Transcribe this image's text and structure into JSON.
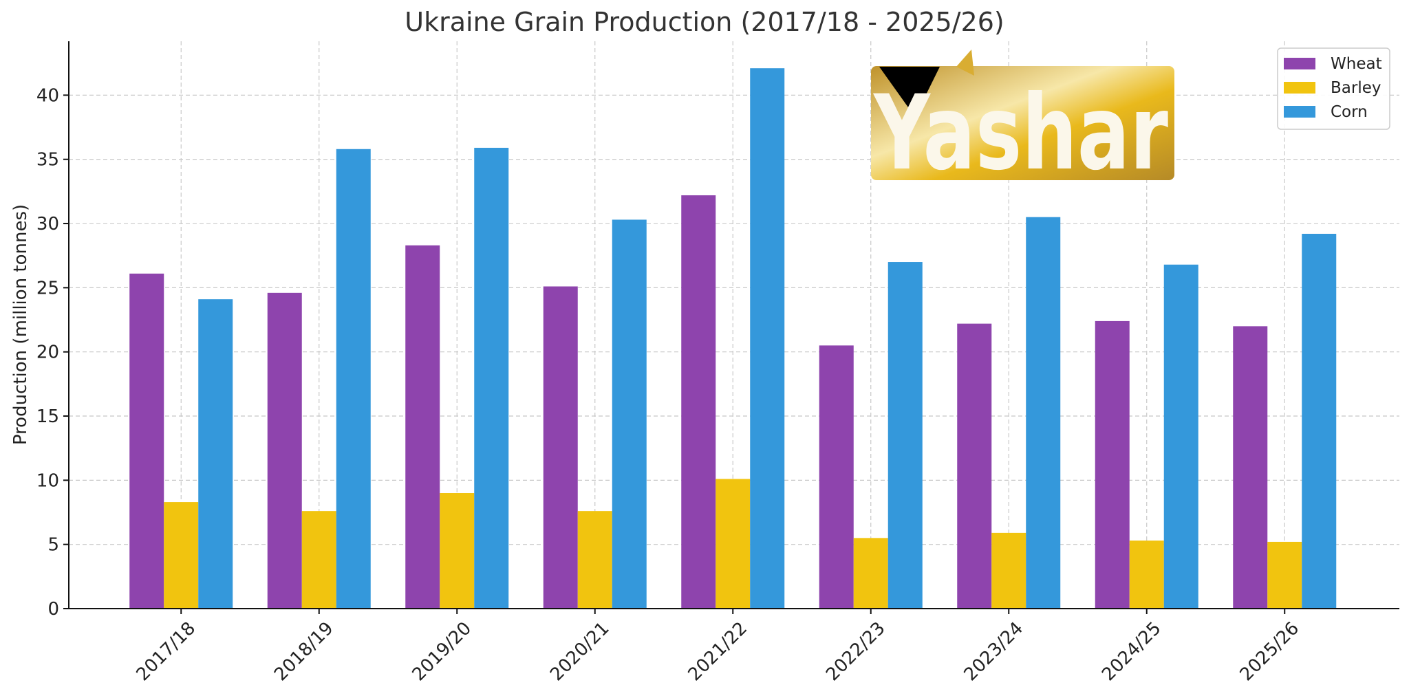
{
  "chart_data": {
    "type": "bar",
    "title": "Ukraine Grain Production (2017/18 - 2025/26)",
    "ylabel": "Production (million tonnes)",
    "xlabel": "",
    "categories": [
      "2017/18",
      "2018/19",
      "2019/20",
      "2020/21",
      "2021/22",
      "2022/23",
      "2023/24",
      "2024/25",
      "2025/26"
    ],
    "series": [
      {
        "name": "Wheat",
        "color": "#8e44ad",
        "values": [
          26.1,
          24.6,
          28.3,
          25.1,
          32.2,
          20.5,
          22.2,
          22.4,
          22.0
        ]
      },
      {
        "name": "Barley",
        "color": "#f1c40f",
        "values": [
          8.3,
          7.6,
          9.0,
          7.6,
          10.1,
          5.5,
          5.9,
          5.3,
          5.2
        ]
      },
      {
        "name": "Corn",
        "color": "#3498db",
        "values": [
          24.1,
          35.8,
          35.9,
          30.3,
          42.1,
          27.0,
          30.5,
          26.8,
          29.2
        ]
      }
    ],
    "ylim": [
      0,
      44.2
    ],
    "yticks": [
      0,
      5,
      10,
      15,
      20,
      25,
      30,
      35,
      40
    ],
    "grid": true,
    "legend_position": "top-right"
  },
  "logo": {
    "text": "Yashar",
    "colors": {
      "gold_dark": "#bf922a",
      "gold_light": "#f7e7a8",
      "black": "#000000"
    }
  }
}
